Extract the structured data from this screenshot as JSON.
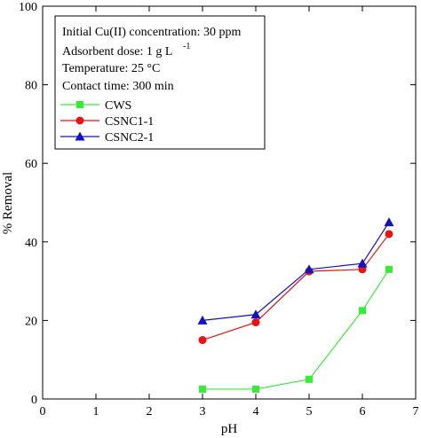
{
  "chart_data": {
    "type": "line",
    "title": "",
    "xlabel": "pH",
    "ylabel": "% Removal",
    "xlim": [
      0,
      7
    ],
    "ylim": [
      0,
      100
    ],
    "xticks": [
      "0",
      "1",
      "2",
      "3",
      "4",
      "5",
      "6",
      "7"
    ],
    "yticks": [
      "0",
      "20",
      "40",
      "60",
      "80",
      "100"
    ],
    "grid": false,
    "legend_position": "top-left",
    "annotations": [
      "Initial Cu(II) concentration: 30 ppm",
      "Adsorbent dose: 1 g L",
      "-1",
      "Temperature: 25 °C",
      "Contact time: 300 min"
    ],
    "series": [
      {
        "name": "CWS",
        "color": "#33ee33",
        "marker": "square",
        "x": [
          3,
          4,
          5,
          6,
          6.5
        ],
        "y": [
          2.5,
          2.5,
          5,
          22.5,
          33
        ]
      },
      {
        "name": "CSNC1-1",
        "color": "#ee1111",
        "marker": "circle",
        "x": [
          3,
          4,
          5,
          6,
          6.5
        ],
        "y": [
          15,
          19.5,
          32.5,
          33,
          42
        ]
      },
      {
        "name": "CSNC2-1",
        "color": "#1111cc",
        "marker": "triangle",
        "x": [
          3,
          4,
          5,
          6,
          6.5
        ],
        "y": [
          20,
          21.5,
          33,
          34.5,
          45
        ]
      }
    ]
  }
}
